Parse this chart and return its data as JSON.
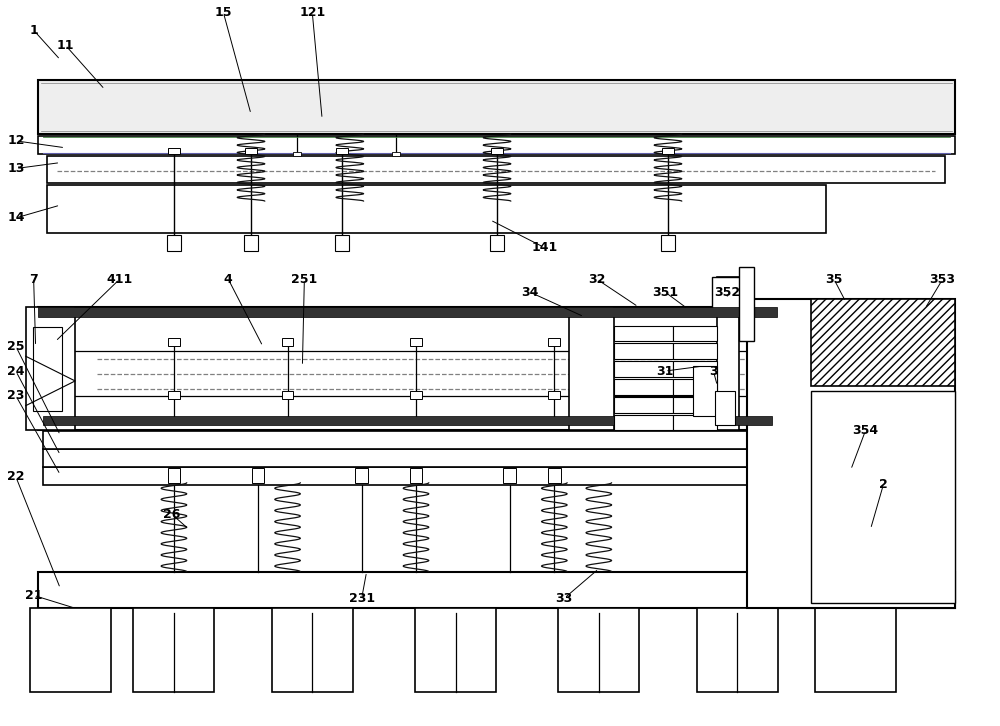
{
  "bg_color": "#ffffff",
  "fig_width": 10.0,
  "fig_height": 7.26,
  "lc": "#000000",
  "purple_line": "#8080c0",
  "green_line": "#408040"
}
